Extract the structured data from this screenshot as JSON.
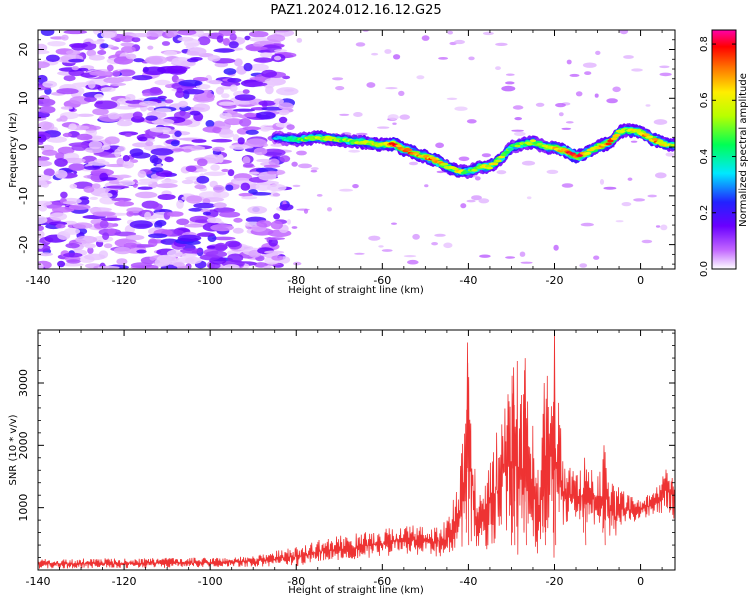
{
  "figure_title": "PAZ1.2024.012.16.12.G25",
  "chart_data": [
    {
      "type": "heatmap",
      "title": "PAZ1.2024.012.16.12.G25",
      "xlabel": "Height of straight line (km)",
      "ylabel": "Frequency (Hz)",
      "xlim": [
        -140,
        8
      ],
      "ylim": [
        -25,
        24
      ],
      "xticks": [
        -140,
        -120,
        -100,
        -80,
        -60,
        -40,
        -20,
        0
      ],
      "yticks": [
        -20,
        -10,
        0,
        10,
        20
      ],
      "colorbar": {
        "label": "Normalized spectral amplitude",
        "range": [
          0,
          0.85
        ],
        "ticks": [
          "0.0",
          "0.2",
          "0.4",
          "0.6",
          "0.8"
        ],
        "tick_values": [
          0,
          0.2,
          0.4,
          0.6,
          0.8
        ],
        "colormap": "gist_ncar-like (white-violet-blue-cyan-green-yellow-orange-red-magenta)"
      },
      "ridge": {
        "description": "dominant frequency track",
        "x": [
          -85,
          -80,
          -75,
          -70,
          -65,
          -60,
          -57,
          -55,
          -50,
          -47,
          -45,
          -42,
          -40,
          -37,
          -35,
          -32,
          -30,
          -28,
          -25,
          -22,
          -20,
          -17,
          -15,
          -12,
          -10,
          -7,
          -5,
          -3,
          0,
          3,
          6,
          8
        ],
        "y": [
          2,
          1.5,
          2,
          1.5,
          1,
          0.5,
          0.5,
          -0.5,
          -2,
          -3,
          -4,
          -5,
          -5,
          -4,
          -4,
          -2,
          0,
          0.5,
          1,
          0,
          0,
          -1,
          -2,
          -1,
          0,
          1,
          3,
          3.5,
          3,
          1.5,
          0.5,
          0.5
        ],
        "amplitude": [
          0.3,
          0.45,
          0.55,
          0.5,
          0.55,
          0.6,
          0.75,
          0.7,
          0.65,
          0.75,
          0.55,
          0.6,
          0.45,
          0.55,
          0.6,
          0.55,
          0.45,
          0.5,
          0.55,
          0.5,
          0.6,
          0.7,
          0.8,
          0.65,
          0.6,
          0.7,
          0.6,
          0.55,
          0.65,
          0.7,
          0.6,
          0.55
        ]
      },
      "noise_region": "weak broadband noise from about -140 to -85 km"
    },
    {
      "type": "line",
      "xlabel": "Height of straight line (km)",
      "ylabel": "SNR (10 * v/v)",
      "xlim": [
        -140,
        8
      ],
      "ylim": [
        0,
        3850
      ],
      "xticks": [
        -140,
        -120,
        -100,
        -80,
        -60,
        -40,
        -20,
        0
      ],
      "yticks": [
        1000,
        2000,
        3000
      ],
      "color": "#ee3333",
      "series_envelope": {
        "x": [
          -140,
          -120,
          -100,
          -90,
          -80,
          -75,
          -70,
          -65,
          -60,
          -55,
          -50,
          -45,
          -42,
          -40,
          -38,
          -35,
          -32,
          -30,
          -28,
          -26,
          -25,
          -24,
          -22,
          -20,
          -18,
          -15,
          -12,
          -10,
          -8,
          -6,
          -5,
          -3,
          0,
          3,
          6,
          8
        ],
        "upper": [
          180,
          190,
          200,
          230,
          380,
          480,
          550,
          600,
          650,
          750,
          700,
          800,
          1500,
          3650,
          1100,
          1900,
          2500,
          3200,
          3450,
          3350,
          2500,
          1600,
          3000,
          3880,
          1900,
          1550,
          1800,
          1500,
          2000,
          1250,
          1350,
          1200,
          1150,
          1250,
          1650,
          1550
        ],
        "lower": [
          20,
          30,
          40,
          50,
          60,
          120,
          150,
          180,
          200,
          250,
          220,
          200,
          260,
          150,
          380,
          250,
          600,
          300,
          150,
          200,
          400,
          150,
          500,
          150,
          700,
          800,
          750,
          700,
          650,
          350,
          700,
          750,
          800,
          850,
          950,
          800
        ]
      }
    }
  ]
}
